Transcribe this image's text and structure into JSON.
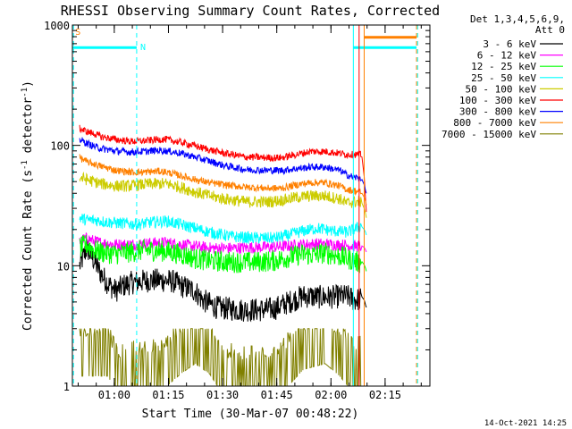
{
  "chart_data": {
    "type": "line",
    "title": "RHESSI Observing Summary Count Rates, Corrected",
    "xlabel": "Start Time (30-Mar-07 00:48:22)",
    "ylabel": "Corrected Count Rate (s",
    "ylabel_sup": "-1",
    "ylabel_tail": " detector",
    "ylabel_tail_sup": "-1",
    "ylabel_end": ")",
    "y_scale": "log",
    "ylim": [
      1,
      1000
    ],
    "y_ticks": [
      {
        "value": 1,
        "label": "1"
      },
      {
        "value": 10,
        "label": "10"
      },
      {
        "value": 100,
        "label": "100"
      },
      {
        "value": 1000,
        "label": "1000"
      }
    ],
    "x_unit": "minutes after 00:48:22",
    "xlim": [
      0,
      99
    ],
    "x_ticks": [
      {
        "value": 11.6,
        "label": "01:00"
      },
      {
        "value": 26.6,
        "label": "01:15"
      },
      {
        "value": 41.6,
        "label": "01:30"
      },
      {
        "value": 56.6,
        "label": "01:45"
      },
      {
        "value": 71.6,
        "label": "02:00"
      },
      {
        "value": 86.6,
        "label": "02:15"
      }
    ],
    "legend_header": [
      "Det 1,3,4,5,6,9,",
      "Att 0"
    ],
    "legend_position": "right",
    "series": [
      {
        "name": "3 - 6 keV",
        "color": "#000000",
        "points": [
          [
            2,
            10
          ],
          [
            4,
            14
          ],
          [
            6,
            11
          ],
          [
            8,
            8.5
          ],
          [
            10,
            7
          ],
          [
            12,
            6.2
          ],
          [
            14,
            6.8
          ],
          [
            16,
            7.2
          ],
          [
            20,
            7.5
          ],
          [
            24,
            7.6
          ],
          [
            28,
            7.4
          ],
          [
            30,
            6.8
          ],
          [
            34,
            6.2
          ],
          [
            36,
            5.2
          ],
          [
            40,
            4.5
          ],
          [
            46,
            4.3
          ],
          [
            52,
            4.3
          ],
          [
            56,
            4.4
          ],
          [
            60,
            5
          ],
          [
            64,
            5.6
          ],
          [
            68,
            5.5
          ],
          [
            72,
            5.5
          ],
          [
            76,
            5.6
          ],
          [
            78,
            5.2
          ],
          [
            80,
            5.3
          ]
        ],
        "tail": [
          [
            80.2,
            5.5
          ],
          [
            80.8,
            5.2
          ],
          [
            81.2,
            4.7
          ],
          [
            81.4,
            4.5
          ]
        ]
      },
      {
        "name": "6 - 12 keV",
        "color": "#ff00ff",
        "points": [
          [
            2,
            16
          ],
          [
            4,
            17
          ],
          [
            6,
            16
          ],
          [
            8,
            15.5
          ],
          [
            12,
            15
          ],
          [
            16,
            15
          ],
          [
            20,
            15.3
          ],
          [
            26,
            15.6
          ],
          [
            30,
            15
          ],
          [
            34,
            14.5
          ],
          [
            38,
            14
          ],
          [
            44,
            14
          ],
          [
            50,
            14.2
          ],
          [
            56,
            14.3
          ],
          [
            60,
            14.6
          ],
          [
            64,
            15
          ],
          [
            68,
            15.2
          ],
          [
            72,
            15
          ],
          [
            76,
            14.8
          ],
          [
            80,
            14.5
          ]
        ],
        "tail": [
          [
            80.2,
            14.6
          ],
          [
            80.8,
            14.2
          ],
          [
            81.2,
            13.5
          ],
          [
            81.4,
            13
          ]
        ]
      },
      {
        "name": "12 - 25 keV",
        "color": "#00ff00",
        "points": [
          [
            2,
            14
          ],
          [
            4,
            15
          ],
          [
            6,
            13.5
          ],
          [
            8,
            13
          ],
          [
            12,
            12.5
          ],
          [
            16,
            13
          ],
          [
            20,
            13.5
          ],
          [
            26,
            13.2
          ],
          [
            30,
            12.5
          ],
          [
            34,
            11.5
          ],
          [
            38,
            11
          ],
          [
            44,
            10.7
          ],
          [
            50,
            10.7
          ],
          [
            56,
            11
          ],
          [
            60,
            11.8
          ],
          [
            64,
            12.5
          ],
          [
            66,
            12.2
          ],
          [
            70,
            12.8
          ],
          [
            74,
            12
          ],
          [
            78,
            11
          ],
          [
            80,
            10.5
          ]
        ],
        "tail": [
          [
            80.2,
            10.8
          ],
          [
            80.8,
            10.2
          ],
          [
            81.2,
            9.5
          ],
          [
            81.4,
            9
          ]
        ]
      },
      {
        "name": "25 - 50 keV",
        "color": "#00ffff",
        "points": [
          [
            2,
            25
          ],
          [
            4,
            24
          ],
          [
            6,
            24
          ],
          [
            10,
            23
          ],
          [
            14,
            22.5
          ],
          [
            18,
            22
          ],
          [
            22,
            23
          ],
          [
            26,
            23.5
          ],
          [
            30,
            22
          ],
          [
            34,
            20.5
          ],
          [
            38,
            19
          ],
          [
            44,
            17.5
          ],
          [
            50,
            17
          ],
          [
            56,
            17
          ],
          [
            60,
            18
          ],
          [
            64,
            19.5
          ],
          [
            68,
            20.5
          ],
          [
            72,
            19.5
          ],
          [
            76,
            19
          ],
          [
            78,
            20
          ],
          [
            80,
            21.5
          ]
        ],
        "tail": [
          [
            80.2,
            21
          ],
          [
            80.8,
            20
          ],
          [
            81.2,
            19
          ],
          [
            81.4,
            18
          ]
        ]
      },
      {
        "name": "50 - 100 keV",
        "color": "#cccc00",
        "points": [
          [
            2,
            54
          ],
          [
            4,
            52
          ],
          [
            6,
            50
          ],
          [
            8,
            48
          ],
          [
            12,
            46
          ],
          [
            16,
            46
          ],
          [
            20,
            47.5
          ],
          [
            24,
            48
          ],
          [
            26,
            48
          ],
          [
            30,
            45
          ],
          [
            34,
            41
          ],
          [
            38,
            38
          ],
          [
            42,
            36
          ],
          [
            48,
            34
          ],
          [
            54,
            34
          ],
          [
            58,
            35
          ],
          [
            62,
            37
          ],
          [
            66,
            38
          ],
          [
            70,
            38
          ],
          [
            74,
            36
          ],
          [
            76,
            33
          ],
          [
            78,
            34
          ],
          [
            80,
            34
          ]
        ],
        "tail": [
          [
            80.2,
            33
          ],
          [
            80.8,
            30
          ],
          [
            81.2,
            27
          ],
          [
            81.4,
            25
          ]
        ]
      },
      {
        "name": "100 - 300 keV",
        "color": "#ff0000",
        "points": [
          [
            2,
            138
          ],
          [
            4,
            130
          ],
          [
            6,
            125
          ],
          [
            8,
            118
          ],
          [
            12,
            112
          ],
          [
            16,
            108
          ],
          [
            20,
            109
          ],
          [
            24,
            112
          ],
          [
            26,
            112
          ],
          [
            30,
            106
          ],
          [
            34,
            99
          ],
          [
            38,
            92
          ],
          [
            42,
            86
          ],
          [
            48,
            80
          ],
          [
            54,
            79
          ],
          [
            58,
            79
          ],
          [
            62,
            84
          ],
          [
            66,
            89
          ],
          [
            70,
            89
          ],
          [
            74,
            86
          ],
          [
            76,
            84
          ],
          [
            78,
            84
          ],
          [
            80,
            84
          ]
        ],
        "tail": [
          [
            80.2,
            80
          ],
          [
            80.8,
            55
          ],
          [
            81.2,
            35
          ],
          [
            81.4,
            28
          ]
        ]
      },
      {
        "name": "300 - 800 keV",
        "color": "#0000ff",
        "points": [
          [
            2,
            112
          ],
          [
            4,
            104
          ],
          [
            6,
            98
          ],
          [
            8,
            94
          ],
          [
            12,
            90
          ],
          [
            16,
            88
          ],
          [
            20,
            89
          ],
          [
            24,
            91
          ],
          [
            26,
            90
          ],
          [
            30,
            86
          ],
          [
            34,
            80
          ],
          [
            38,
            74
          ],
          [
            42,
            68
          ],
          [
            48,
            63
          ],
          [
            54,
            62
          ],
          [
            58,
            62
          ],
          [
            62,
            64
          ],
          [
            66,
            66
          ],
          [
            70,
            66
          ],
          [
            74,
            62
          ],
          [
            76,
            57
          ],
          [
            78,
            54
          ],
          [
            80,
            54
          ]
        ],
        "tail": [
          [
            80.2,
            52
          ],
          [
            80.8,
            47
          ],
          [
            81.2,
            42
          ],
          [
            81.4,
            40
          ]
        ]
      },
      {
        "name": "800 - 7000 keV",
        "color": "#ff8000",
        "points": [
          [
            2,
            79
          ],
          [
            4,
            73
          ],
          [
            6,
            70
          ],
          [
            8,
            67
          ],
          [
            12,
            62
          ],
          [
            16,
            60
          ],
          [
            20,
            60
          ],
          [
            24,
            61
          ],
          [
            26,
            60
          ],
          [
            30,
            56
          ],
          [
            34,
            52
          ],
          [
            38,
            49
          ],
          [
            42,
            47
          ],
          [
            48,
            45
          ],
          [
            54,
            44
          ],
          [
            58,
            44
          ],
          [
            62,
            47
          ],
          [
            66,
            49
          ],
          [
            70,
            49
          ],
          [
            74,
            46
          ],
          [
            76,
            43
          ],
          [
            78,
            42
          ],
          [
            80,
            41
          ]
        ],
        "tail": [
          [
            80.2,
            40
          ],
          [
            80.8,
            37
          ],
          [
            81.2,
            34
          ],
          [
            81.4,
            32
          ]
        ]
      },
      {
        "name": "7000 - 15000 keV",
        "color": "#808000",
        "points": [
          [
            2,
            2.2
          ],
          [
            10,
            2.2
          ],
          [
            12,
            1.5
          ],
          [
            24,
            1.6
          ],
          [
            30,
            2.3
          ],
          [
            34,
            2.8
          ],
          [
            38,
            2.3
          ],
          [
            42,
            1.5
          ],
          [
            50,
            1.4
          ],
          [
            58,
            1.6
          ],
          [
            64,
            2.5
          ],
          [
            70,
            2.8
          ],
          [
            74,
            2.2
          ],
          [
            78,
            1.6
          ],
          [
            80,
            1.8
          ]
        ],
        "tail": []
      }
    ],
    "flag_rows": [
      {
        "color": "#00ffff",
        "y": 650,
        "segments": [
          [
            0,
            17.8
          ],
          [
            77.8,
            95.3
          ]
        ]
      },
      {
        "color": "#ff8000",
        "y": 790,
        "segments": [
          [
            80.8,
            95.3
          ]
        ]
      }
    ],
    "vertical_lines": [
      {
        "x": 0.3,
        "color": "#00ffff",
        "style": "dashed"
      },
      {
        "x": 17.8,
        "color": "#00ffff",
        "style": "dashed"
      },
      {
        "x": 77.8,
        "color": "#00ffff",
        "style": "solid"
      },
      {
        "x": 79.4,
        "color": "#ff0000",
        "style": "solid"
      },
      {
        "x": 80.8,
        "color": "#ff8000",
        "style": "solid"
      },
      {
        "x": 95.3,
        "color": "#ff8000",
        "style": "dashed"
      },
      {
        "x": 95.6,
        "color": "#00ffff",
        "style": "dashed"
      }
    ],
    "markers": [
      {
        "label": "S",
        "x": 0.8,
        "y": 830,
        "color": "#ff8000"
      },
      {
        "label": "N",
        "x": 18.8,
        "y": 620,
        "color": "#00ffff"
      }
    ]
  },
  "footer_timestamp": "14-Oct-2021 14:25"
}
